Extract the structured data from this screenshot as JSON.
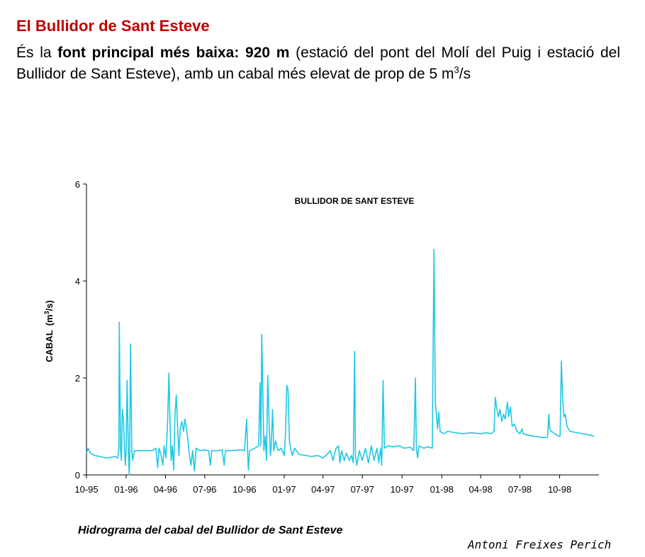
{
  "header": {
    "title": "El Bullidor de Sant Esteve",
    "intro_part1": "És la ",
    "intro_bold": "font principal més baixa: 920 m",
    "intro_part2": " (estació del pont del Molí del Puig i estació del Bullidor de Sant Esteve), amb un cabal més elevat de prop de 5 m",
    "intro_sup": "3",
    "intro_part3": "/s"
  },
  "chart_data": {
    "type": "line",
    "title": "BULLIDOR DE SANT ESTEVE",
    "ylabel": "CABAL",
    "ylabel_unit": "(m",
    "ylabel_unit_sup": "3",
    "ylabel_unit_end": "/s)",
    "ylim": [
      0,
      6
    ],
    "yticks": [
      0,
      2,
      4,
      6
    ],
    "xlim": [
      "1995-10-01",
      "1998-12-31"
    ],
    "xticks": [
      {
        "date": "1995-10-01",
        "label": "10-95"
      },
      {
        "date": "1996-01-01",
        "label": "01-96"
      },
      {
        "date": "1996-04-01",
        "label": "04-96"
      },
      {
        "date": "1996-07-01",
        "label": "07-96"
      },
      {
        "date": "1996-10-01",
        "label": "10-96"
      },
      {
        "date": "1997-01-01",
        "label": "01-97"
      },
      {
        "date": "1997-04-01",
        "label": "04-97"
      },
      {
        "date": "1997-07-01",
        "label": "07-97"
      },
      {
        "date": "1997-10-01",
        "label": "10-97"
      },
      {
        "date": "1998-01-01",
        "label": "01-98"
      },
      {
        "date": "1998-04-01",
        "label": "04-98"
      },
      {
        "date": "1998-07-01",
        "label": "07-98"
      },
      {
        "date": "1998-10-01",
        "label": "10-98"
      }
    ],
    "grid": false,
    "legend": "none",
    "series": [
      {
        "color": "#1fc8e3",
        "points": [
          [
            "1995-10-01",
            0.45
          ],
          [
            "1995-10-05",
            0.55
          ],
          [
            "1995-10-10",
            0.45
          ],
          [
            "1995-10-20",
            0.4
          ],
          [
            "1995-11-01",
            0.38
          ],
          [
            "1995-11-15",
            0.35
          ],
          [
            "1995-11-25",
            0.36
          ],
          [
            "1995-12-05",
            0.38
          ],
          [
            "1995-12-12",
            0.35
          ],
          [
            "1995-12-15",
            0.55
          ],
          [
            "1995-12-16",
            3.15
          ],
          [
            "1995-12-19",
            0.5
          ],
          [
            "1995-12-21",
            0.3
          ],
          [
            "1995-12-23",
            1.35
          ],
          [
            "1995-12-26",
            1.1
          ],
          [
            "1995-12-28",
            0.55
          ],
          [
            "1995-12-30",
            0.2
          ],
          [
            "1996-01-01",
            0.5
          ],
          [
            "1996-01-03",
            1.95
          ],
          [
            "1996-01-06",
            0.5
          ],
          [
            "1996-01-08",
            0.0
          ],
          [
            "1996-01-09",
            0.3
          ],
          [
            "1996-01-11",
            2.7
          ],
          [
            "1996-01-14",
            0.5
          ],
          [
            "1996-01-16",
            0.3
          ],
          [
            "1996-01-20",
            0.5
          ],
          [
            "1996-02-10",
            0.5
          ],
          [
            "1996-03-01",
            0.5
          ],
          [
            "1996-03-10",
            0.55
          ],
          [
            "1996-03-14",
            0.15
          ],
          [
            "1996-03-17",
            0.55
          ],
          [
            "1996-03-22",
            0.4
          ],
          [
            "1996-03-26",
            0.2
          ],
          [
            "1996-03-29",
            0.6
          ],
          [
            "1996-04-02",
            0.35
          ],
          [
            "1996-04-06",
            1.1
          ],
          [
            "1996-04-09",
            2.1
          ],
          [
            "1996-04-12",
            0.9
          ],
          [
            "1996-04-14",
            0.3
          ],
          [
            "1996-04-17",
            0.6
          ],
          [
            "1996-04-20",
            0.1
          ],
          [
            "1996-04-23",
            1.25
          ],
          [
            "1996-04-26",
            1.65
          ],
          [
            "1996-04-29",
            1.0
          ],
          [
            "1996-05-02",
            0.4
          ],
          [
            "1996-05-05",
            0.95
          ],
          [
            "1996-05-09",
            1.1
          ],
          [
            "1996-05-13",
            0.9
          ],
          [
            "1996-05-16",
            1.15
          ],
          [
            "1996-05-19",
            1.0
          ],
          [
            "1996-05-22",
            0.8
          ],
          [
            "1996-05-26",
            0.45
          ],
          [
            "1996-05-30",
            0.2
          ],
          [
            "1996-06-03",
            0.5
          ],
          [
            "1996-06-07",
            0.08
          ],
          [
            "1996-06-11",
            0.55
          ],
          [
            "1996-06-20",
            0.5
          ],
          [
            "1996-07-01",
            0.52
          ],
          [
            "1996-07-10",
            0.5
          ],
          [
            "1996-07-14",
            0.2
          ],
          [
            "1996-07-17",
            0.5
          ],
          [
            "1996-08-01",
            0.5
          ],
          [
            "1996-08-10",
            0.52
          ],
          [
            "1996-08-15",
            0.2
          ],
          [
            "1996-08-18",
            0.5
          ],
          [
            "1996-09-01",
            0.5
          ],
          [
            "1996-09-20",
            0.52
          ],
          [
            "1996-10-01",
            0.5
          ],
          [
            "1996-10-06",
            1.15
          ],
          [
            "1996-10-08",
            0.55
          ],
          [
            "1996-10-10",
            0.1
          ],
          [
            "1996-10-13",
            0.5
          ],
          [
            "1996-10-25",
            0.55
          ],
          [
            "1996-11-03",
            0.6
          ],
          [
            "1996-11-06",
            1.9
          ],
          [
            "1996-11-08",
            0.6
          ],
          [
            "1996-11-10",
            2.9
          ],
          [
            "1996-11-13",
            1.5
          ],
          [
            "1996-11-15",
            0.5
          ],
          [
            "1996-11-18",
            0.8
          ],
          [
            "1996-11-21",
            0.3
          ],
          [
            "1996-11-24",
            2.05
          ],
          [
            "1996-11-27",
            1.1
          ],
          [
            "1996-11-30",
            0.4
          ],
          [
            "1996-12-02",
            0.6
          ],
          [
            "1996-12-05",
            1.35
          ],
          [
            "1996-12-08",
            0.5
          ],
          [
            "1996-12-12",
            0.7
          ],
          [
            "1996-12-18",
            0.5
          ],
          [
            "1996-12-25",
            0.55
          ],
          [
            "1997-01-01",
            0.4
          ],
          [
            "1997-01-04",
            0.85
          ],
          [
            "1997-01-07",
            1.85
          ],
          [
            "1997-01-10",
            1.75
          ],
          [
            "1997-01-13",
            0.7
          ],
          [
            "1997-01-17",
            0.5
          ],
          [
            "1997-01-20",
            0.4
          ],
          [
            "1997-01-25",
            0.55
          ],
          [
            "1997-02-05",
            0.42
          ],
          [
            "1997-02-20",
            0.4
          ],
          [
            "1997-03-05",
            0.38
          ],
          [
            "1997-03-20",
            0.4
          ],
          [
            "1997-04-01",
            0.35
          ],
          [
            "1997-04-10",
            0.42
          ],
          [
            "1997-04-18",
            0.5
          ],
          [
            "1997-04-24",
            0.3
          ],
          [
            "1997-05-01",
            0.55
          ],
          [
            "1997-05-07",
            0.6
          ],
          [
            "1997-05-10",
            0.25
          ],
          [
            "1997-05-14",
            0.5
          ],
          [
            "1997-05-20",
            0.3
          ],
          [
            "1997-05-25",
            0.45
          ],
          [
            "1997-06-01",
            0.3
          ],
          [
            "1997-06-06",
            0.4
          ],
          [
            "1997-06-10",
            0.25
          ],
          [
            "1997-06-13",
            2.55
          ],
          [
            "1997-06-15",
            0.4
          ],
          [
            "1997-06-18",
            0.2
          ],
          [
            "1997-06-24",
            0.5
          ],
          [
            "1997-07-01",
            0.3
          ],
          [
            "1997-07-08",
            0.55
          ],
          [
            "1997-07-15",
            0.25
          ],
          [
            "1997-07-22",
            0.6
          ],
          [
            "1997-07-28",
            0.3
          ],
          [
            "1997-08-04",
            0.55
          ],
          [
            "1997-08-08",
            0.25
          ],
          [
            "1997-08-12",
            0.55
          ],
          [
            "1997-08-15",
            0.2
          ],
          [
            "1997-08-18",
            1.95
          ],
          [
            "1997-08-21",
            0.55
          ],
          [
            "1997-08-30",
            0.6
          ],
          [
            "1997-09-10",
            0.58
          ],
          [
            "1997-09-25",
            0.6
          ],
          [
            "1997-10-05",
            0.55
          ],
          [
            "1997-10-20",
            0.57
          ],
          [
            "1997-10-28",
            0.5
          ],
          [
            "1997-11-01",
            2.0
          ],
          [
            "1997-11-03",
            0.55
          ],
          [
            "1997-11-06",
            0.35
          ],
          [
            "1997-11-09",
            0.6
          ],
          [
            "1997-11-20",
            0.55
          ],
          [
            "1997-12-01",
            0.58
          ],
          [
            "1997-12-10",
            0.55
          ],
          [
            "1997-12-14",
            4.65
          ],
          [
            "1997-12-17",
            1.5
          ],
          [
            "1997-12-19",
            1.3
          ],
          [
            "1997-12-22",
            0.95
          ],
          [
            "1997-12-25",
            1.3
          ],
          [
            "1997-12-28",
            0.9
          ],
          [
            "1998-01-05",
            0.85
          ],
          [
            "1998-01-15",
            0.9
          ],
          [
            "1998-02-01",
            0.87
          ],
          [
            "1998-02-20",
            0.85
          ],
          [
            "1998-03-10",
            0.87
          ],
          [
            "1998-04-01",
            0.85
          ],
          [
            "1998-04-15",
            0.87
          ],
          [
            "1998-04-25",
            0.85
          ],
          [
            "1998-05-02",
            0.9
          ],
          [
            "1998-05-05",
            1.6
          ],
          [
            "1998-05-08",
            1.4
          ],
          [
            "1998-05-12",
            1.2
          ],
          [
            "1998-05-16",
            1.35
          ],
          [
            "1998-05-20",
            1.1
          ],
          [
            "1998-05-24",
            1.25
          ],
          [
            "1998-05-28",
            1.15
          ],
          [
            "1998-06-02",
            1.5
          ],
          [
            "1998-06-05",
            1.2
          ],
          [
            "1998-06-09",
            1.4
          ],
          [
            "1998-06-13",
            1.0
          ],
          [
            "1998-06-18",
            1.05
          ],
          [
            "1998-06-24",
            0.9
          ],
          [
            "1998-07-01",
            0.85
          ],
          [
            "1998-07-06",
            0.95
          ],
          [
            "1998-07-08",
            0.85
          ],
          [
            "1998-07-20",
            0.82
          ],
          [
            "1998-08-01",
            0.8
          ],
          [
            "1998-08-15",
            0.78
          ],
          [
            "1998-08-30",
            0.77
          ],
          [
            "1998-09-03",
            0.78
          ],
          [
            "1998-09-06",
            1.25
          ],
          [
            "1998-09-08",
            0.95
          ],
          [
            "1998-09-12",
            0.9
          ],
          [
            "1998-09-20",
            0.85
          ],
          [
            "1998-09-28",
            0.8
          ],
          [
            "1998-10-02",
            0.8
          ],
          [
            "1998-10-05",
            2.35
          ],
          [
            "1998-10-08",
            1.6
          ],
          [
            "1998-10-11",
            1.2
          ],
          [
            "1998-10-14",
            1.25
          ],
          [
            "1998-10-18",
            1.0
          ],
          [
            "1998-10-25",
            0.9
          ],
          [
            "1998-11-10",
            0.87
          ],
          [
            "1998-11-25",
            0.85
          ],
          [
            "1998-12-10",
            0.82
          ],
          [
            "1998-12-20",
            0.8
          ]
        ]
      }
    ]
  },
  "footer": {
    "caption": "Hidrograma del cabal del Bullidor de Sant Esteve",
    "credit": "Antoni Freixes Perich"
  }
}
